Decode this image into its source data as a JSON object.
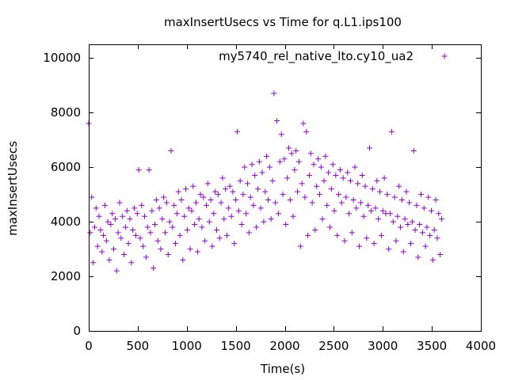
{
  "chart_data": {
    "type": "scatter",
    "title": "maxInsertUsecs vs Time for q.L1.ips100",
    "xlabel": "Time(s)",
    "ylabel": "maxInsertUsecs",
    "xlim": [
      0,
      4000
    ],
    "ylim": [
      0,
      10500
    ],
    "xticks": [
      0,
      500,
      1000,
      1500,
      2000,
      2500,
      3000,
      3500,
      4000
    ],
    "yticks": [
      0,
      2000,
      4000,
      6000,
      8000,
      10000
    ],
    "xtick_labels": [
      "0",
      "500",
      "1000",
      "1500",
      "2000",
      "2500",
      "3000",
      "3500",
      "4000"
    ],
    "ytick_labels": [
      "0",
      "2000",
      "4000",
      "6000",
      "8000",
      "10000"
    ],
    "grid": false,
    "legend_position": "top-right",
    "marker": "+",
    "series": [
      {
        "name": "my5740_rel_native_lto.cy10_ua2",
        "color": "#9400d3",
        "x": [
          0,
          15,
          30,
          45,
          60,
          75,
          90,
          105,
          120,
          135,
          150,
          165,
          180,
          195,
          210,
          225,
          240,
          255,
          270,
          285,
          300,
          315,
          330,
          345,
          360,
          375,
          390,
          405,
          420,
          435,
          450,
          465,
          480,
          495,
          510,
          525,
          540,
          555,
          570,
          585,
          600,
          615,
          630,
          645,
          660,
          675,
          690,
          705,
          720,
          735,
          750,
          765,
          780,
          795,
          810,
          825,
          840,
          855,
          870,
          885,
          900,
          915,
          930,
          945,
          960,
          975,
          990,
          1005,
          1020,
          1035,
          1050,
          1065,
          1080,
          1095,
          1110,
          1125,
          1140,
          1155,
          1170,
          1185,
          1200,
          1215,
          1230,
          1245,
          1260,
          1275,
          1290,
          1305,
          1320,
          1335,
          1350,
          1365,
          1380,
          1395,
          1410,
          1425,
          1440,
          1455,
          1470,
          1485,
          1500,
          1515,
          1530,
          1545,
          1560,
          1575,
          1590,
          1605,
          1620,
          1635,
          1650,
          1665,
          1680,
          1695,
          1710,
          1725,
          1740,
          1755,
          1770,
          1785,
          1800,
          1815,
          1830,
          1845,
          1860,
          1875,
          1890,
          1905,
          1920,
          1935,
          1950,
          1965,
          1980,
          1995,
          2010,
          2025,
          2040,
          2055,
          2070,
          2085,
          2100,
          2115,
          2130,
          2145,
          2160,
          2175,
          2190,
          2205,
          2220,
          2235,
          2250,
          2265,
          2280,
          2295,
          2310,
          2325,
          2340,
          2355,
          2370,
          2385,
          2400,
          2415,
          2430,
          2445,
          2460,
          2475,
          2490,
          2505,
          2520,
          2535,
          2550,
          2565,
          2580,
          2595,
          2610,
          2625,
          2640,
          2655,
          2670,
          2685,
          2700,
          2715,
          2730,
          2745,
          2760,
          2775,
          2790,
          2805,
          2820,
          2835,
          2850,
          2865,
          2880,
          2895,
          2910,
          2925,
          2940,
          2955,
          2970,
          2985,
          3000,
          3015,
          3030,
          3045,
          3060,
          3075,
          3090,
          3105,
          3120,
          3135,
          3150,
          3165,
          3180,
          3195,
          3210,
          3225,
          3240,
          3255,
          3270,
          3285,
          3300,
          3315,
          3330,
          3345,
          3360,
          3375,
          3390,
          3405,
          3420,
          3435,
          3450,
          3465,
          3480,
          3495,
          3510,
          3525,
          3540,
          3555,
          3570,
          3585,
          3600
        ],
        "y": [
          7600,
          3600,
          4900,
          2500,
          3800,
          4500,
          3100,
          4200,
          3700,
          2900,
          3500,
          4600,
          3300,
          4000,
          2600,
          3900,
          4300,
          3000,
          4100,
          2200,
          3600,
          4700,
          3400,
          4200,
          2800,
          3800,
          4400,
          3200,
          4100,
          2500,
          3700,
          4500,
          3500,
          4300,
          5900,
          3400,
          4600,
          3100,
          4200,
          2700,
          3800,
          5900,
          3600,
          4400,
          2300,
          3900,
          4800,
          3300,
          4500,
          3000,
          4100,
          4900,
          3600,
          4700,
          2800,
          4000,
          6600,
          3800,
          4600,
          3200,
          4300,
          5100,
          3500,
          4800,
          2600,
          4200,
          5200,
          3700,
          4500,
          3000,
          4400,
          5300,
          3900,
          4700,
          2900,
          4100,
          5000,
          3800,
          4900,
          3300,
          4600,
          5400,
          4000,
          4800,
          3100,
          4300,
          5100,
          3700,
          5000,
          3400,
          4700,
          5600,
          4100,
          5200,
          3500,
          4500,
          5300,
          4200,
          5100,
          3200,
          4800,
          7300,
          4400,
          5500,
          3900,
          5000,
          6000,
          4300,
          5400,
          3600,
          4900,
          6100,
          4600,
          5700,
          3800,
          5200,
          6200,
          4500,
          5800,
          4000,
          5100,
          6400,
          4800,
          6000,
          4100,
          5500,
          8700,
          4700,
          7700,
          4300,
          6200,
          7200,
          5000,
          6300,
          3900,
          5600,
          6700,
          4800,
          6500,
          4200,
          5900,
          6600,
          5100,
          6200,
          3100,
          5400,
          7600,
          4900,
          7300,
          3500,
          5700,
          6500,
          4700,
          6100,
          3700,
          5300,
          6300,
          5000,
          6000,
          4100,
          5500,
          6400,
          4600,
          5800,
          3800,
          5200,
          6100,
          4400,
          5700,
          3500,
          5000,
          5900,
          4700,
          5600,
          3300,
          4900,
          5800,
          4300,
          5500,
          3600,
          4800,
          6000,
          4500,
          5400,
          3100,
          4700,
          5700,
          4200,
          5300,
          3400,
          4600,
          6700,
          4400,
          5200,
          3200,
          4500,
          5500,
          4100,
          5100,
          3500,
          4400,
          5600,
          4300,
          5000,
          3000,
          4300,
          7300,
          4000,
          4900,
          3300,
          4200,
          5300,
          3800,
          4800,
          2900,
          4100,
          5100,
          3900,
          4700,
          3200,
          4000,
          6600,
          3700,
          4600,
          2700,
          3900,
          5000,
          3600,
          4500,
          3100,
          3800,
          4900,
          3500,
          4400,
          2600,
          3700,
          4800,
          3400,
          4300,
          2800,
          4100
        ]
      }
    ]
  }
}
